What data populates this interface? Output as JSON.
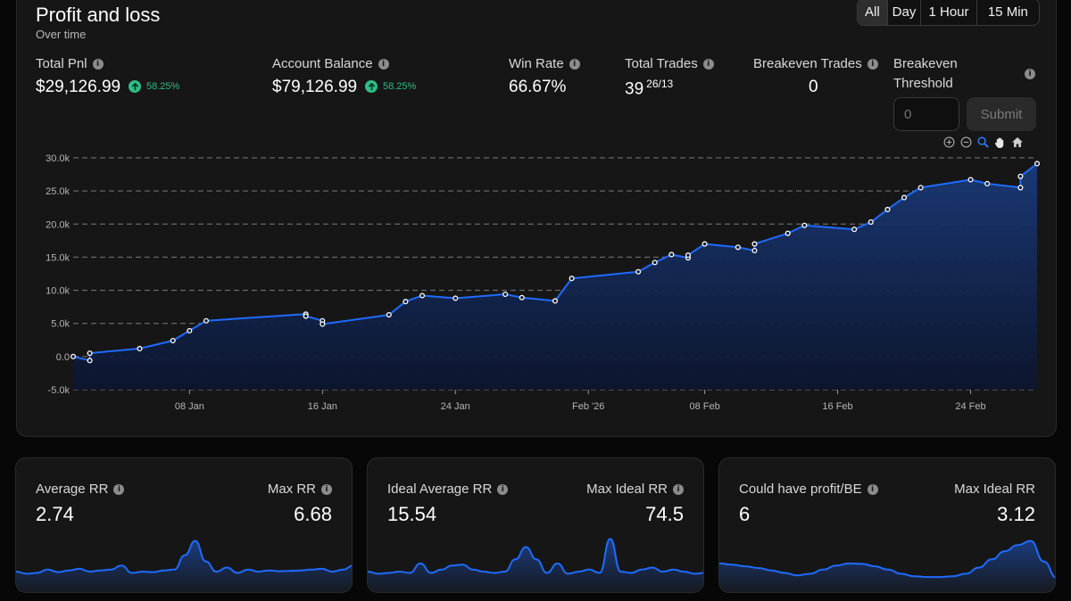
{
  "header": {
    "title": "Profit and loss",
    "subtitle": "Over time"
  },
  "range_tabs": [
    {
      "label": "All",
      "active": true
    },
    {
      "label": "Day",
      "active": false
    },
    {
      "label": "1 Hour",
      "active": false
    },
    {
      "label": "15 Min",
      "active": false
    }
  ],
  "stats": {
    "total_pnl": {
      "label": "Total Pnl",
      "value": "$29,126.99",
      "change": "58.25%"
    },
    "account_balance": {
      "label": "Account Balance",
      "value": "$79,126.99",
      "change": "58.25%"
    },
    "win_rate": {
      "label": "Win Rate",
      "value": "66.67%"
    },
    "total_trades": {
      "label": "Total Trades",
      "value": "39",
      "detail": "26/13"
    },
    "breakeven_trades": {
      "label": "Breakeven Trades",
      "value": "0"
    }
  },
  "breakeven_threshold": {
    "label_line1": "Breakeven",
    "label_line2": "Threshold",
    "placeholder": "0",
    "submit_label": "Submit"
  },
  "chart_tools": [
    "zoom-in-icon",
    "zoom-out-icon",
    "zoom-select-icon",
    "pan-hand-icon",
    "reset-home-icon"
  ],
  "colors": {
    "accent": "#1f6bff",
    "positive": "#2ebd85",
    "area_top": "#1a3a78",
    "area_bottom": "#0b1530"
  },
  "chart_data": {
    "type": "area",
    "title": "Profit and loss",
    "xlabel": "",
    "ylabel": "",
    "ylim": [
      -5000,
      30000
    ],
    "y_ticks": [
      "30.0k",
      "25.0k",
      "20.0k",
      "15.0k",
      "10.0k",
      "5.0k",
      "0.0",
      "-5.0k"
    ],
    "y_tick_values": [
      30000,
      25000,
      20000,
      15000,
      10000,
      5000,
      0,
      -5000
    ],
    "x_tick_labels": [
      "08 Jan",
      "16 Jan",
      "24 Jan",
      "Feb '26",
      "08 Feb",
      "16 Feb",
      "24 Feb"
    ],
    "x_tick_dates": [
      "2026-01-08",
      "2026-01-16",
      "2026-01-24",
      "2026-02-01",
      "2026-02-08",
      "2026-02-16",
      "2026-02-24"
    ],
    "xlim": [
      "2026-01-01",
      "2026-02-28"
    ],
    "grid": "horizontal dashed",
    "series": [
      {
        "values": [
          {
            "x": "2026-01-01",
            "y": 0
          },
          {
            "x": "2026-01-02",
            "y": -600
          },
          {
            "x": "2026-01-02",
            "y": 500
          },
          {
            "x": "2026-01-05",
            "y": 1200
          },
          {
            "x": "2026-01-07",
            "y": 2400
          },
          {
            "x": "2026-01-08",
            "y": 3900
          },
          {
            "x": "2026-01-09",
            "y": 5400
          },
          {
            "x": "2026-01-15",
            "y": 6400
          },
          {
            "x": "2026-01-15",
            "y": 6100
          },
          {
            "x": "2026-01-16",
            "y": 5400
          },
          {
            "x": "2026-01-16",
            "y": 4900
          },
          {
            "x": "2026-01-20",
            "y": 6300
          },
          {
            "x": "2026-01-21",
            "y": 8300
          },
          {
            "x": "2026-01-22",
            "y": 9200
          },
          {
            "x": "2026-01-24",
            "y": 8800
          },
          {
            "x": "2026-01-27",
            "y": 9400
          },
          {
            "x": "2026-01-28",
            "y": 8900
          },
          {
            "x": "2026-01-30",
            "y": 8400
          },
          {
            "x": "2026-01-31",
            "y": 11800
          },
          {
            "x": "2026-02-04",
            "y": 12800
          },
          {
            "x": "2026-02-05",
            "y": 14200
          },
          {
            "x": "2026-02-06",
            "y": 15400
          },
          {
            "x": "2026-02-07",
            "y": 14900
          },
          {
            "x": "2026-02-07",
            "y": 15300
          },
          {
            "x": "2026-02-08",
            "y": 17000
          },
          {
            "x": "2026-02-10",
            "y": 16500
          },
          {
            "x": "2026-02-11",
            "y": 16000
          },
          {
            "x": "2026-02-11",
            "y": 17000
          },
          {
            "x": "2026-02-13",
            "y": 18600
          },
          {
            "x": "2026-02-14",
            "y": 19800
          },
          {
            "x": "2026-02-17",
            "y": 19200
          },
          {
            "x": "2026-02-18",
            "y": 20300
          },
          {
            "x": "2026-02-19",
            "y": 22200
          },
          {
            "x": "2026-02-20",
            "y": 24000
          },
          {
            "x": "2026-02-21",
            "y": 25500
          },
          {
            "x": "2026-02-24",
            "y": 26700
          },
          {
            "x": "2026-02-25",
            "y": 26100
          },
          {
            "x": "2026-02-27",
            "y": 25500
          },
          {
            "x": "2026-02-27",
            "y": 27200
          },
          {
            "x": "2026-02-28",
            "y": 29127
          }
        ]
      }
    ]
  },
  "cards": [
    {
      "left_label": "Average RR",
      "left_value": "2.74",
      "right_label": "Max RR",
      "right_value": "6.68",
      "spark": [
        0.15,
        0.1,
        0.12,
        0.2,
        0.14,
        0.18,
        0.22,
        0.15,
        0.18,
        0.2,
        0.3,
        0.12,
        0.15,
        0.14,
        0.18,
        0.2,
        0.55,
        0.9,
        0.4,
        0.15,
        0.25,
        0.12,
        0.2,
        0.15,
        0.18,
        0.16,
        0.17,
        0.18,
        0.2,
        0.22,
        0.15,
        0.2,
        0.3
      ]
    },
    {
      "left_label": "Ideal Average RR",
      "left_value": "15.54",
      "right_label": "Max Ideal RR",
      "right_value": "74.5",
      "spark": [
        0.15,
        0.1,
        0.12,
        0.15,
        0.12,
        0.35,
        0.12,
        0.2,
        0.3,
        0.32,
        0.2,
        0.15,
        0.12,
        0.15,
        0.45,
        0.75,
        0.45,
        0.12,
        0.35,
        0.1,
        0.15,
        0.2,
        0.12,
        0.95,
        0.15,
        0.12,
        0.2,
        0.25,
        0.15,
        0.2,
        0.15,
        0.1,
        0.12
      ]
    },
    {
      "left_label": "Could have profit/BE",
      "left_value": "6",
      "right_label": "Max Ideal RR",
      "right_value": "3.12",
      "spark": [
        0.35,
        0.32,
        0.28,
        0.24,
        0.18,
        0.12,
        0.06,
        0.1,
        0.2,
        0.3,
        0.35,
        0.34,
        0.28,
        0.2,
        0.1,
        0.04,
        0.02,
        0.02,
        0.04,
        0.1,
        0.25,
        0.45,
        0.65,
        0.8,
        0.9,
        0.4,
        0.0
      ]
    }
  ]
}
